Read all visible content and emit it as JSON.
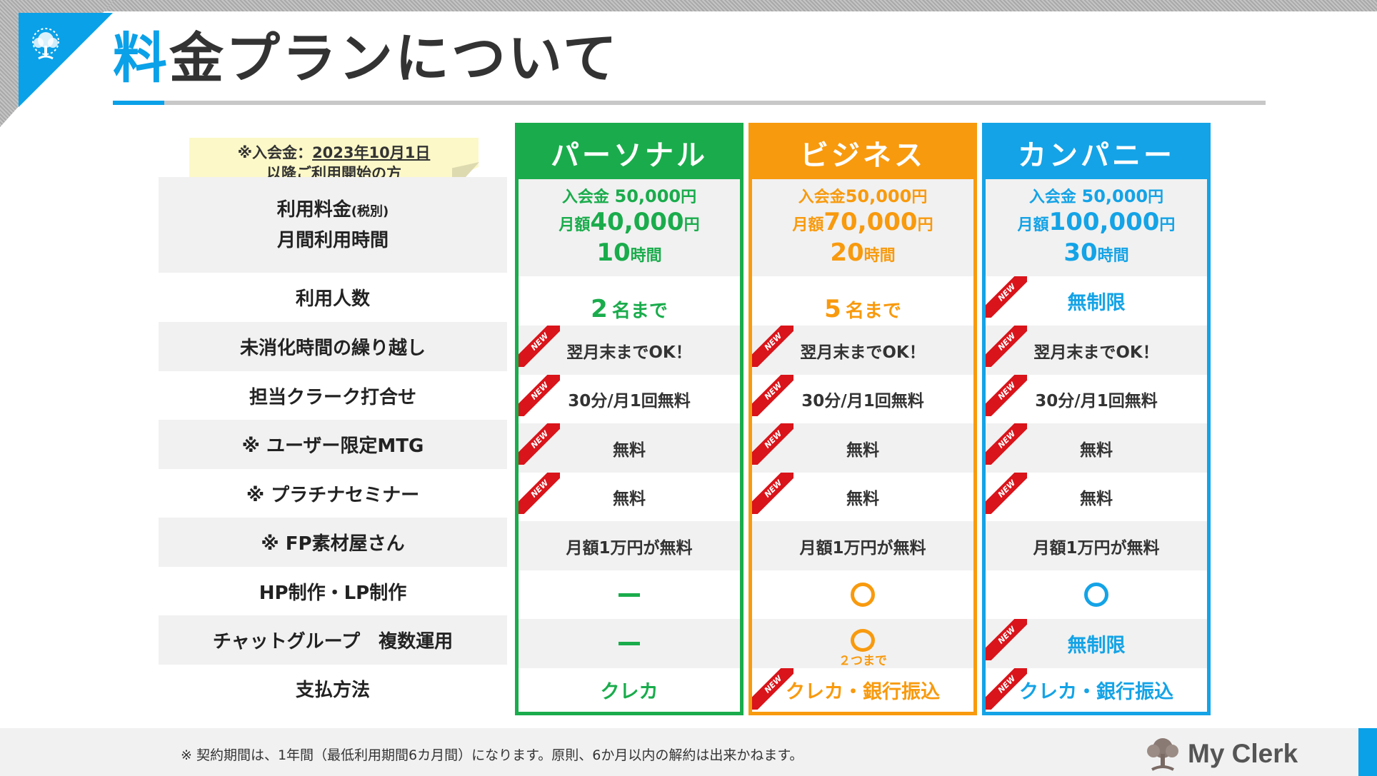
{
  "title": {
    "accent": "料",
    "rest": "金プランについて"
  },
  "note": {
    "line1_prefix": "※入会金：",
    "line1_date": "2023年10月1日",
    "line2": "以降ご利用開始の方"
  },
  "row_labels": {
    "fee": "利用料金",
    "fee_small": "(税別)",
    "hours": "月間利用時間",
    "users": "利用人数",
    "carryover": "未消化時間の繰り越し",
    "meeting": "担当クラーク打合せ",
    "mtg": "※ ユーザー限定MTG",
    "seminar": "※ プラチナセミナー",
    "fp": "※ FP素材屋さん",
    "hp": "HP制作・LP制作",
    "chat": "チャットグループ　複数運用",
    "payment": "支払方法"
  },
  "badge_text": "NEW",
  "plans": [
    {
      "name": "パーソナル",
      "color": "#1aac4c",
      "entry_label": "入会金 ",
      "entry_num": "50,000",
      "entry_unit": "円",
      "monthly_label": "月額",
      "monthly_num": "40,000",
      "monthly_unit": "円",
      "hours_num": "10",
      "hours_unit": "時間",
      "users_num": "2",
      "users_unit": "名まで",
      "carryover": "翌月末までOK！",
      "meeting": "30分/月1回無料",
      "mtg": "無料",
      "seminar": "無料",
      "fp": "月額1万円が無料",
      "hp": "dash",
      "chat": "dash",
      "payment": "クレカ"
    },
    {
      "name": "ビジネス",
      "color": "#f89a0e",
      "entry_label": "入会金",
      "entry_num": "50,000",
      "entry_unit": "円",
      "monthly_label": "月額",
      "monthly_num": "70,000",
      "monthly_unit": "円",
      "hours_num": "20",
      "hours_unit": "時間",
      "users_num": "5",
      "users_unit": "名まで",
      "carryover": "翌月末までOK！",
      "meeting": "30分/月1回無料",
      "mtg": "無料",
      "seminar": "無料",
      "fp": "月額1万円が無料",
      "hp": "circle",
      "chat": "circle",
      "chat_note": "２つまで",
      "payment": "クレカ・銀行振込"
    },
    {
      "name": "カンパニー",
      "color": "#14a3e6",
      "entry_label": "入会金 ",
      "entry_num": "50,000",
      "entry_unit": "円",
      "monthly_label": "月額",
      "monthly_num": "100,000",
      "monthly_unit": "円",
      "hours_num": "30",
      "hours_unit": "時間",
      "users_text": "無制限",
      "carryover": "翌月末までOK！",
      "meeting": "30分/月1回無料",
      "mtg": "無料",
      "seminar": "無料",
      "fp": "月額1万円が無料",
      "hp": "circle",
      "chat_text": "無制限",
      "payment": "クレカ・銀行振込"
    }
  ],
  "footer": {
    "note": "※ 契約期間は、1年間（最低利用期間6カ月間）になります。原則、6か月以内の解約は出来かねます。",
    "brand": "My Clerk"
  }
}
